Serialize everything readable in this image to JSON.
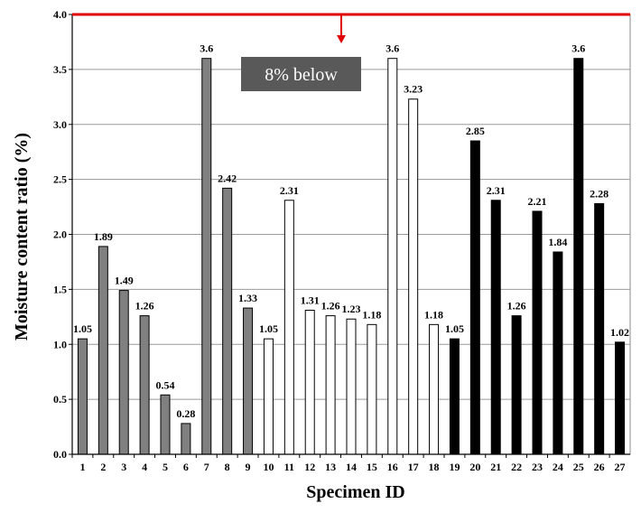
{
  "chart_data": {
    "type": "bar",
    "title": "",
    "xlabel": "Specimen ID",
    "ylabel": "Moisture content ratio (%)",
    "ylim": [
      0,
      4.0
    ],
    "yticks": [
      "0.0",
      "0.5",
      "1.0",
      "1.5",
      "2.0",
      "2.5",
      "3.0",
      "3.5",
      "4.0"
    ],
    "grid": true,
    "categories": [
      "1",
      "2",
      "3",
      "4",
      "5",
      "6",
      "7",
      "8",
      "9",
      "10",
      "11",
      "12",
      "13",
      "14",
      "15",
      "16",
      "17",
      "18",
      "19",
      "20",
      "21",
      "22",
      "23",
      "24",
      "25",
      "26",
      "27"
    ],
    "values": [
      1.05,
      1.89,
      1.49,
      1.26,
      0.54,
      0.28,
      3.6,
      2.42,
      1.33,
      1.05,
      2.31,
      1.31,
      1.26,
      1.23,
      1.18,
      3.6,
      3.23,
      1.18,
      1.05,
      2.85,
      2.31,
      1.26,
      2.21,
      1.84,
      3.6,
      2.28,
      1.02
    ],
    "data_labels": [
      "1.05",
      "1.89",
      "1.49",
      "1.26",
      "0.54",
      "0.28",
      "3.6",
      "2.42",
      "1.33",
      "1.05",
      "2.31",
      "1.31",
      "1.26",
      "1.23",
      "1.18",
      "3.6",
      "3.23",
      "1.18",
      "1.05",
      "2.85",
      "2.31",
      "1.26",
      "2.21",
      "1.84",
      "3.6",
      "2.28",
      "1.02"
    ],
    "series_colors": [
      "#808080",
      "#808080",
      "#808080",
      "#808080",
      "#808080",
      "#808080",
      "#808080",
      "#808080",
      "#808080",
      "#ffffff",
      "#ffffff",
      "#ffffff",
      "#ffffff",
      "#ffffff",
      "#ffffff",
      "#ffffff",
      "#ffffff",
      "#ffffff",
      "#000000",
      "#000000",
      "#000000",
      "#000000",
      "#000000",
      "#000000",
      "#000000",
      "#000000",
      "#000000"
    ],
    "reference_line": {
      "value": 4.0,
      "color": "#e00000"
    },
    "annotation": {
      "text": "8% below",
      "box_color": "#595959",
      "text_color": "#ffffff",
      "arrow_color": "#e00000"
    }
  }
}
